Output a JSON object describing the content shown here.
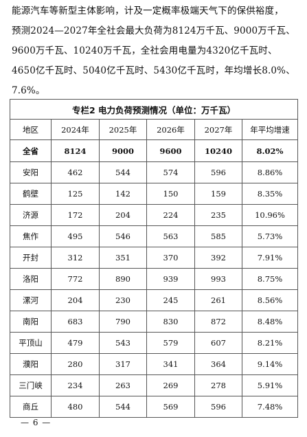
{
  "paragraph": {
    "lines": [
      "能源汽车等新型主体影响，计及一定概率极端天气下的保供裕度，",
      "预测2024—2027年全社会最大负荷为8124万千瓦、9000万千瓦、",
      "9600万千瓦、10240万千瓦，全社会用电量为4320亿千瓦时、",
      "4650亿千瓦时、5040亿千瓦时、5430亿千瓦时，年均增长8.0%、",
      "7.6%。"
    ]
  },
  "table": {
    "caption": "专栏2  电力负荷预测情况（单位：万千瓦）",
    "headers": [
      "地区",
      "2024年",
      "2025年",
      "2026年",
      "2027年",
      "年平均增速"
    ],
    "total": [
      "全省",
      "8124",
      "9000",
      "9600",
      "10240",
      "8.02%"
    ],
    "rows": [
      [
        "安阳",
        "462",
        "544",
        "574",
        "596",
        "8.86%"
      ],
      [
        "鹤壁",
        "125",
        "142",
        "150",
        "159",
        "8.35%"
      ],
      [
        "济源",
        "172",
        "204",
        "224",
        "235",
        "10.96%"
      ],
      [
        "焦作",
        "495",
        "546",
        "563",
        "585",
        "5.73%"
      ],
      [
        "开封",
        "312",
        "351",
        "370",
        "392",
        "7.91%"
      ],
      [
        "洛阳",
        "772",
        "890",
        "939",
        "993",
        "8.75%"
      ],
      [
        "漯河",
        "204",
        "230",
        "245",
        "261",
        "8.56%"
      ],
      [
        "南阳",
        "683",
        "790",
        "830",
        "872",
        "8.48%"
      ],
      [
        "平顶山",
        "479",
        "543",
        "579",
        "607",
        "8.21%"
      ],
      [
        "濮阳",
        "280",
        "317",
        "341",
        "364",
        "9.14%"
      ],
      [
        "三门峡",
        "234",
        "263",
        "269",
        "278",
        "5.91%"
      ],
      [
        "商丘",
        "480",
        "544",
        "569",
        "596",
        "7.48%"
      ]
    ]
  },
  "footer": {
    "page_number": "— 6 —"
  }
}
